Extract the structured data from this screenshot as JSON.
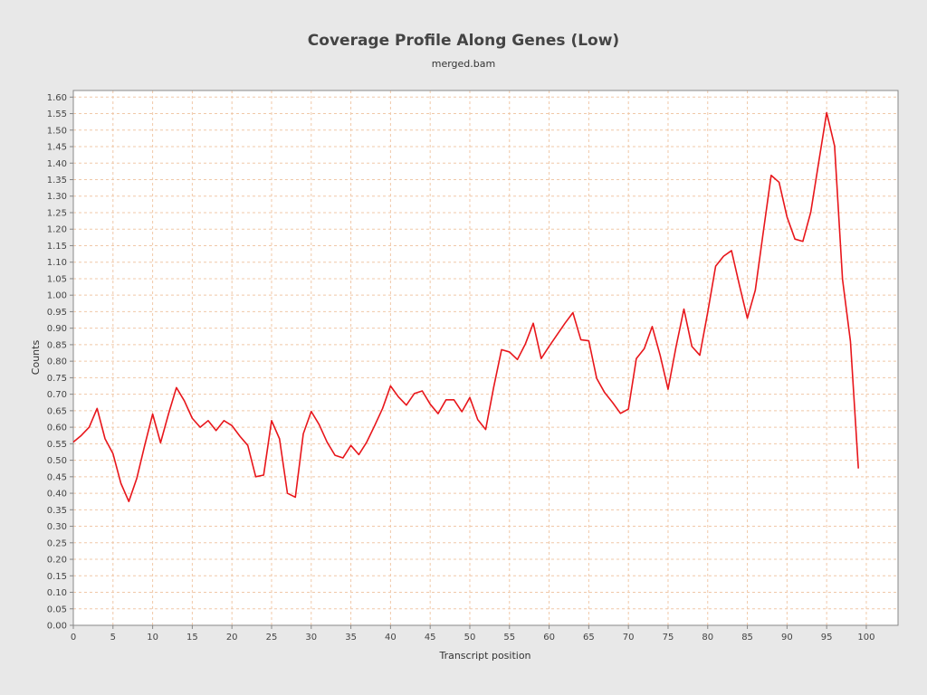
{
  "chart_data": {
    "type": "line",
    "title": "Coverage Profile Along Genes (Low)",
    "subtitle": "merged.bam",
    "xlabel": "Transcript position",
    "ylabel": "Counts",
    "xlim": [
      0,
      104
    ],
    "ylim": [
      0,
      1.62
    ],
    "x_ticks": [
      "0",
      "5",
      "10",
      "15",
      "20",
      "25",
      "30",
      "35",
      "40",
      "45",
      "50",
      "55",
      "60",
      "65",
      "70",
      "75",
      "80",
      "85",
      "90",
      "95",
      "100"
    ],
    "y_ticks": [
      "0.00",
      "0.05",
      "0.10",
      "0.15",
      "0.20",
      "0.25",
      "0.30",
      "0.35",
      "0.40",
      "0.45",
      "0.50",
      "0.55",
      "0.60",
      "0.65",
      "0.70",
      "0.75",
      "0.80",
      "0.85",
      "0.90",
      "0.95",
      "1.00",
      "1.05",
      "1.10",
      "1.15",
      "1.20",
      "1.25",
      "1.30",
      "1.35",
      "1.40",
      "1.45",
      "1.50",
      "1.55",
      "1.60"
    ],
    "grid": true,
    "colors": {
      "line": "#e8161b",
      "background": "#ffffff",
      "grid": "#f0c8a8",
      "page": "#e8e8e8"
    },
    "series": [
      {
        "x": [
          0,
          1,
          2,
          3,
          4,
          5,
          6,
          7,
          8,
          9,
          10,
          11,
          12,
          13,
          14,
          15,
          16,
          17,
          18,
          19,
          20,
          21,
          22,
          23,
          24,
          25,
          26,
          27,
          28,
          29,
          30,
          31,
          32,
          33,
          34,
          35,
          36,
          37,
          38,
          39,
          40,
          41,
          42,
          43,
          44,
          45,
          46,
          47,
          48,
          49,
          50,
          51,
          52,
          53,
          54,
          55,
          56,
          57,
          58,
          59,
          60,
          61,
          62,
          63,
          64,
          65,
          66,
          67,
          68,
          69,
          70,
          71,
          72,
          73,
          74,
          75,
          76,
          77,
          78,
          79,
          80,
          81,
          82,
          83,
          84,
          85,
          86,
          87,
          88,
          89,
          90,
          91,
          92,
          93,
          94,
          95,
          96,
          97,
          98,
          99
        ],
        "values": [
          0.555,
          0.575,
          0.6,
          0.657,
          0.565,
          0.52,
          0.43,
          0.375,
          0.445,
          0.545,
          0.64,
          0.553,
          0.64,
          0.72,
          0.68,
          0.627,
          0.6,
          0.62,
          0.59,
          0.62,
          0.605,
          0.573,
          0.545,
          0.45,
          0.455,
          0.62,
          0.565,
          0.4,
          0.388,
          0.58,
          0.648,
          0.608,
          0.555,
          0.515,
          0.507,
          0.545,
          0.517,
          0.555,
          0.605,
          0.657,
          0.725,
          0.692,
          0.667,
          0.702,
          0.71,
          0.67,
          0.641,
          0.683,
          0.683,
          0.647,
          0.69,
          0.623,
          0.593,
          0.72,
          0.835,
          0.828,
          0.805,
          0.852,
          0.915,
          0.808,
          0.845,
          0.88,
          0.915,
          0.947,
          0.865,
          0.862,
          0.748,
          0.705,
          0.675,
          0.642,
          0.655,
          0.808,
          0.838,
          0.905,
          0.818,
          0.715,
          0.843,
          0.958,
          0.845,
          0.818,
          0.948,
          1.088,
          1.118,
          1.135,
          1.03,
          0.93,
          1.015,
          1.19,
          1.363,
          1.342,
          1.237,
          1.17,
          1.163,
          1.252,
          1.403,
          1.553,
          1.452,
          1.048,
          0.86,
          0.475
        ]
      }
    ]
  }
}
